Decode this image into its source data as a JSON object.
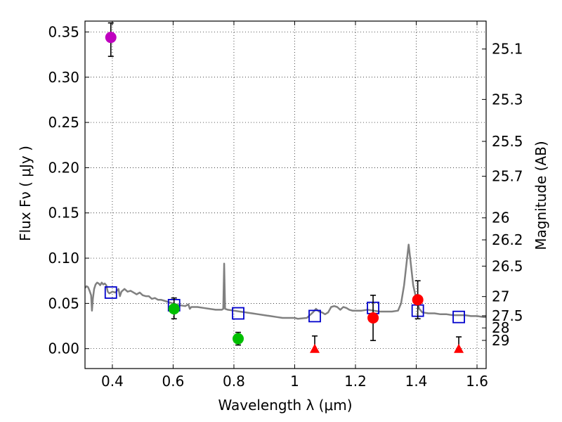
{
  "chart_data": {
    "type": "scatter",
    "xlabel": "Wavelength  λ (μm)",
    "ylabel": "Flux  Fν  ( μJy )",
    "ylabel_right": "Magnitude (AB)",
    "xlim": [
      0.31,
      1.63
    ],
    "ylim": [
      -0.022,
      0.362
    ],
    "grid": true,
    "x_ticks": [
      0.4,
      0.6,
      0.8,
      1.0,
      1.2,
      1.4,
      1.6
    ],
    "x_tick_labels": [
      "0.4",
      "0.6",
      "0.8",
      "1",
      "1.2",
      "1.4",
      "1.6"
    ],
    "y_ticks": [
      0.0,
      0.05,
      0.1,
      0.15,
      0.2,
      0.25,
      0.3,
      0.35
    ],
    "y_tick_labels": [
      "0.00",
      "0.05",
      "0.10",
      "0.15",
      "0.20",
      "0.25",
      "0.30",
      "0.35"
    ],
    "right_ticks": [
      {
        "label": "25.1",
        "value": 25.1
      },
      {
        "label": "25.3",
        "value": 25.3
      },
      {
        "label": "25.5",
        "value": 25.5
      },
      {
        "label": "25.7",
        "value": 25.7
      },
      {
        "label": "26",
        "value": 26.0
      },
      {
        "label": "26.2",
        "value": 26.2
      },
      {
        "label": "26.5",
        "value": 26.5
      },
      {
        "label": "27",
        "value": 27.0
      },
      {
        "label": "27.5",
        "value": 27.5
      },
      {
        "label": "28",
        "value": 28.0
      },
      {
        "label": "29",
        "value": 29.0
      }
    ],
    "series": [
      {
        "name": "model spectrum",
        "kind": "line",
        "color": "#808080",
        "points": [
          [
            0.31,
            0.067
          ],
          [
            0.315,
            0.069
          ],
          [
            0.32,
            0.068
          ],
          [
            0.325,
            0.064
          ],
          [
            0.33,
            0.059
          ],
          [
            0.333,
            0.042
          ],
          [
            0.336,
            0.055
          ],
          [
            0.34,
            0.066
          ],
          [
            0.345,
            0.071
          ],
          [
            0.35,
            0.073
          ],
          [
            0.355,
            0.072
          ],
          [
            0.36,
            0.07
          ],
          [
            0.365,
            0.073
          ],
          [
            0.37,
            0.071
          ],
          [
            0.375,
            0.072
          ],
          [
            0.38,
            0.07
          ],
          [
            0.385,
            0.063
          ],
          [
            0.39,
            0.061
          ],
          [
            0.395,
            0.062
          ],
          [
            0.4,
            0.063
          ],
          [
            0.41,
            0.062
          ],
          [
            0.42,
            0.066
          ],
          [
            0.425,
            0.058
          ],
          [
            0.43,
            0.063
          ],
          [
            0.44,
            0.066
          ],
          [
            0.45,
            0.063
          ],
          [
            0.46,
            0.064
          ],
          [
            0.47,
            0.062
          ],
          [
            0.48,
            0.06
          ],
          [
            0.49,
            0.062
          ],
          [
            0.5,
            0.059
          ],
          [
            0.51,
            0.058
          ],
          [
            0.52,
            0.058
          ],
          [
            0.53,
            0.055
          ],
          [
            0.54,
            0.056
          ],
          [
            0.55,
            0.054
          ],
          [
            0.56,
            0.054
          ],
          [
            0.57,
            0.053
          ],
          [
            0.58,
            0.052
          ],
          [
            0.59,
            0.051
          ],
          [
            0.6,
            0.05
          ],
          [
            0.61,
            0.049
          ],
          [
            0.62,
            0.048
          ],
          [
            0.64,
            0.047
          ],
          [
            0.65,
            0.049
          ],
          [
            0.655,
            0.044
          ],
          [
            0.66,
            0.046
          ],
          [
            0.68,
            0.046
          ],
          [
            0.7,
            0.045
          ],
          [
            0.72,
            0.044
          ],
          [
            0.74,
            0.043
          ],
          [
            0.76,
            0.043
          ],
          [
            0.765,
            0.044
          ],
          [
            0.768,
            0.094
          ],
          [
            0.771,
            0.044
          ],
          [
            0.78,
            0.043
          ],
          [
            0.8,
            0.042
          ],
          [
            0.82,
            0.041
          ],
          [
            0.84,
            0.04
          ],
          [
            0.86,
            0.039
          ],
          [
            0.88,
            0.038
          ],
          [
            0.9,
            0.037
          ],
          [
            0.92,
            0.036
          ],
          [
            0.94,
            0.035
          ],
          [
            0.96,
            0.034
          ],
          [
            0.98,
            0.034
          ],
          [
            1.0,
            0.034
          ],
          [
            1.01,
            0.033
          ],
          [
            1.04,
            0.034
          ],
          [
            1.06,
            0.04
          ],
          [
            1.07,
            0.044
          ],
          [
            1.08,
            0.041
          ],
          [
            1.09,
            0.04
          ],
          [
            1.1,
            0.038
          ],
          [
            1.11,
            0.04
          ],
          [
            1.12,
            0.046
          ],
          [
            1.13,
            0.047
          ],
          [
            1.14,
            0.046
          ],
          [
            1.15,
            0.043
          ],
          [
            1.16,
            0.046
          ],
          [
            1.17,
            0.045
          ],
          [
            1.18,
            0.043
          ],
          [
            1.19,
            0.042
          ],
          [
            1.2,
            0.042
          ],
          [
            1.22,
            0.042
          ],
          [
            1.24,
            0.043
          ],
          [
            1.26,
            0.042
          ],
          [
            1.28,
            0.041
          ],
          [
            1.3,
            0.041
          ],
          [
            1.32,
            0.041
          ],
          [
            1.34,
            0.042
          ],
          [
            1.35,
            0.05
          ],
          [
            1.36,
            0.07
          ],
          [
            1.37,
            0.1
          ],
          [
            1.375,
            0.115
          ],
          [
            1.38,
            0.1
          ],
          [
            1.39,
            0.07
          ],
          [
            1.4,
            0.055
          ],
          [
            1.41,
            0.044
          ],
          [
            1.42,
            0.04
          ],
          [
            1.44,
            0.039
          ],
          [
            1.46,
            0.039
          ],
          [
            1.48,
            0.038
          ],
          [
            1.5,
            0.038
          ],
          [
            1.52,
            0.037
          ],
          [
            1.54,
            0.037
          ],
          [
            1.56,
            0.037
          ],
          [
            1.58,
            0.036
          ],
          [
            1.6,
            0.036
          ],
          [
            1.62,
            0.035
          ],
          [
            1.63,
            0.035
          ]
        ]
      },
      {
        "name": "model fluxes",
        "kind": "open-square",
        "color": "#0000cc",
        "points": [
          [
            0.395,
            0.062
          ],
          [
            0.603,
            0.048
          ],
          [
            0.814,
            0.039
          ],
          [
            1.066,
            0.036
          ],
          [
            1.258,
            0.045
          ],
          [
            1.405,
            0.042
          ],
          [
            1.54,
            0.035
          ]
        ]
      },
      {
        "name": "measurement (violet)",
        "kind": "circle",
        "color": "#bf00bf",
        "points": [
          {
            "x": 0.395,
            "y": 0.344,
            "yerr_low": 0.021,
            "yerr_high": 0.016
          }
        ]
      },
      {
        "name": "measurement (green)",
        "kind": "circle",
        "color": "#00bf00",
        "points": [
          {
            "x": 0.603,
            "y": 0.044,
            "yerr_low": 0.011,
            "yerr_high": 0.012
          },
          {
            "x": 0.814,
            "y": 0.011,
            "yerr_low": 0.007,
            "yerr_high": 0.007
          }
        ]
      },
      {
        "name": "measurement (red)",
        "kind": "circle",
        "color": "#ff0000",
        "points": [
          {
            "x": 1.258,
            "y": 0.034,
            "yerr_low": 0.025,
            "yerr_high": 0.025
          },
          {
            "x": 1.405,
            "y": 0.054,
            "yerr_low": 0.021,
            "yerr_high": 0.021
          }
        ]
      },
      {
        "name": "upper limits",
        "kind": "triangle",
        "color": "#ff0000",
        "points": [
          {
            "x": 1.066,
            "y": 0.0,
            "yerr_low": 0.0,
            "yerr_high": 0.014
          },
          {
            "x": 1.54,
            "y": 0.0,
            "yerr_low": 0.0,
            "yerr_high": 0.013
          }
        ]
      }
    ]
  }
}
